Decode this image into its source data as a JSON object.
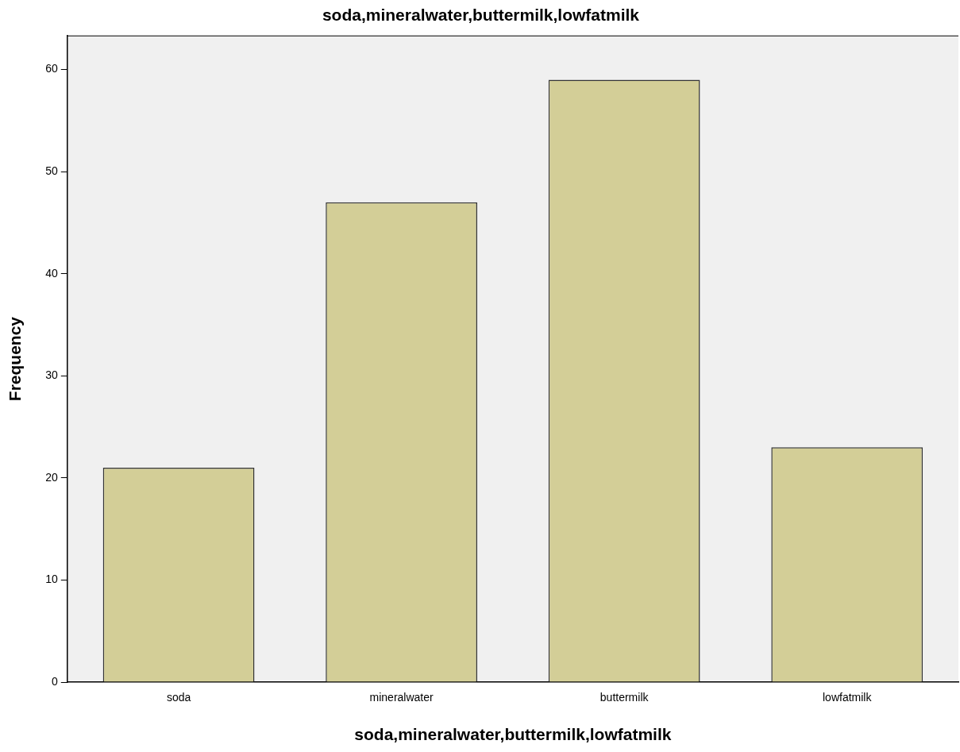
{
  "chart_data": {
    "type": "bar",
    "title": "soda,mineralwater,buttermilk,lowfatmilk",
    "xlabel": "soda,mineralwater,buttermilk,lowfatmilk",
    "ylabel": "Frequency",
    "categories": [
      "soda",
      "mineralwater",
      "buttermilk",
      "lowfatmilk"
    ],
    "values": [
      21,
      47,
      59,
      23
    ],
    "color": "#d3ce97",
    "ylim": [
      0,
      63.3
    ],
    "yticks": [
      0,
      10,
      20,
      30,
      40,
      50,
      60
    ],
    "grid": false,
    "legend": false
  }
}
